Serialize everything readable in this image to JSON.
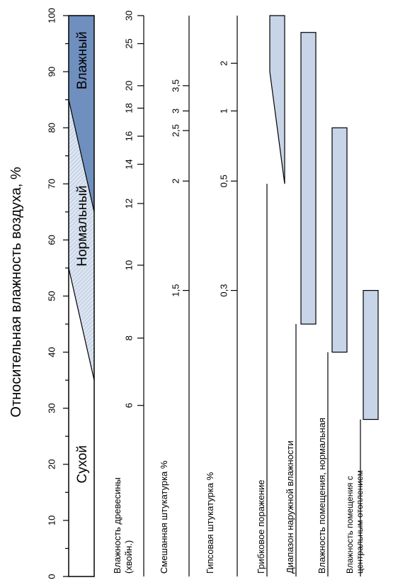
{
  "title": "Относительная влажность воздуха, %",
  "rh_ticks": [
    "0",
    "10",
    "20",
    "30",
    "40",
    "50",
    "60",
    "70",
    "80",
    "90",
    "100"
  ],
  "zones": {
    "dry": "Сухой",
    "normal": "Нормальный",
    "wet": "Влажный"
  },
  "zone_boundaries": {
    "dry_normal": {
      "rh_at_left": 35,
      "rh_at_right": 55
    },
    "normal_wet": {
      "rh_at_left": 65,
      "rh_at_right": 85
    }
  },
  "scales": [
    {
      "label": "Влажность древесины (хвойн.)",
      "line_from_rh": 0,
      "ticks": [
        {
          "label": "6",
          "rh": 30.5
        },
        {
          "label": "8",
          "rh": 42.5
        },
        {
          "label": "10",
          "rh": 55.5
        },
        {
          "label": "12",
          "rh": 66.5
        },
        {
          "label": "14",
          "rh": 73.5
        },
        {
          "label": "16",
          "rh": 78.5
        },
        {
          "label": "18",
          "rh": 83.5
        },
        {
          "label": "20",
          "rh": 87.5
        },
        {
          "label": "25",
          "rh": 95.0
        },
        {
          "label": "30",
          "rh": 100.0
        }
      ]
    },
    {
      "label": "Смешанная штукатурка %",
      "line_from_rh": 0,
      "ticks": [
        {
          "label": "1,5",
          "rh": 51.0
        },
        {
          "label": "2",
          "rh": 70.5
        },
        {
          "label": "2,5",
          "rh": 79.5
        },
        {
          "label": "3",
          "rh": 83.0
        },
        {
          "label": "3,5",
          "rh": 87.5
        }
      ]
    },
    {
      "label": "Гипсовая штукатурка %",
      "line_from_rh": 0,
      "ticks": [
        {
          "label": "0,3",
          "rh": 51.0
        },
        {
          "label": "0,5",
          "rh": 70.5
        },
        {
          "label": "1",
          "rh": 83.0
        },
        {
          "label": "2",
          "rh": 91.5
        }
      ]
    }
  ],
  "bars": [
    {
      "label": "Грибковое поражение",
      "from_rh": 70,
      "to_rh": 100,
      "type": "wedge",
      "wedge_at_rh": 90
    },
    {
      "label": "Диапазон наружной влажности",
      "from_rh": 45,
      "to_rh": 97,
      "type": "rect"
    },
    {
      "label": "Влажность помещения, нормальная",
      "from_rh": 40,
      "to_rh": 80,
      "type": "rect"
    },
    {
      "label": "Влажность помещения с центральным отоплением",
      "from_rh": 28,
      "to_rh": 51,
      "type": "rect"
    }
  ],
  "colors": {
    "wet_fill": "#6f8fbf",
    "normal_fill_a": "#b9c8df",
    "normal_fill_b": "#dde5f1",
    "bar_fill": "#c8d5e8",
    "line": "#000000"
  }
}
